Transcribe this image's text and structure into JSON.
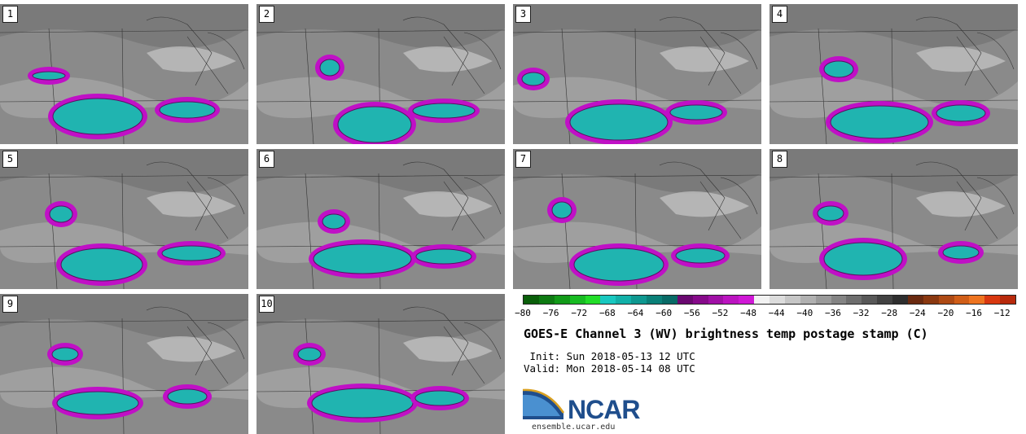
{
  "panels": [
    {
      "label": "1"
    },
    {
      "label": "2"
    },
    {
      "label": "3"
    },
    {
      "label": "4"
    },
    {
      "label": "5"
    },
    {
      "label": "6"
    },
    {
      "label": "7"
    },
    {
      "label": "8"
    },
    {
      "label": "9"
    },
    {
      "label": "10"
    }
  ],
  "colorbar": {
    "ticks": [
      "−80",
      "−76",
      "−72",
      "−68",
      "−64",
      "−60",
      "−56",
      "−52",
      "−48",
      "−44",
      "−40",
      "−36",
      "−32",
      "−28",
      "−24",
      "−20",
      "−16",
      "−12"
    ],
    "colors": [
      "#0a5f0a",
      "#0e7a12",
      "#129a18",
      "#18bb22",
      "#22dd28",
      "#18c8c0",
      "#12b0a8",
      "#0e9890",
      "#0a8078",
      "#086a66",
      "#6a0870",
      "#860a8a",
      "#a010a6",
      "#bb14c0",
      "#d018d6",
      "#f2f2f2",
      "#dcdcdc",
      "#c6c6c6",
      "#b0b0b0",
      "#9a9a9a",
      "#848484",
      "#6e6e6e",
      "#585858",
      "#424242",
      "#2e2e2e",
      "#6a2a10",
      "#8a3810",
      "#ae4a14",
      "#d05e18",
      "#ee7420",
      "#d83810",
      "#b82a0c"
    ],
    "colors_note": ""
  },
  "title": "GOES-E Channel 3 (WV) brightness temp postage stamp (C)",
  "init": " Init: Sun 2018-05-13 12 UTC",
  "valid": "Valid: Mon 2018-05-14 08 UTC",
  "logo": {
    "text": "NCAR",
    "url": "ensemble.ucar.edu"
  }
}
